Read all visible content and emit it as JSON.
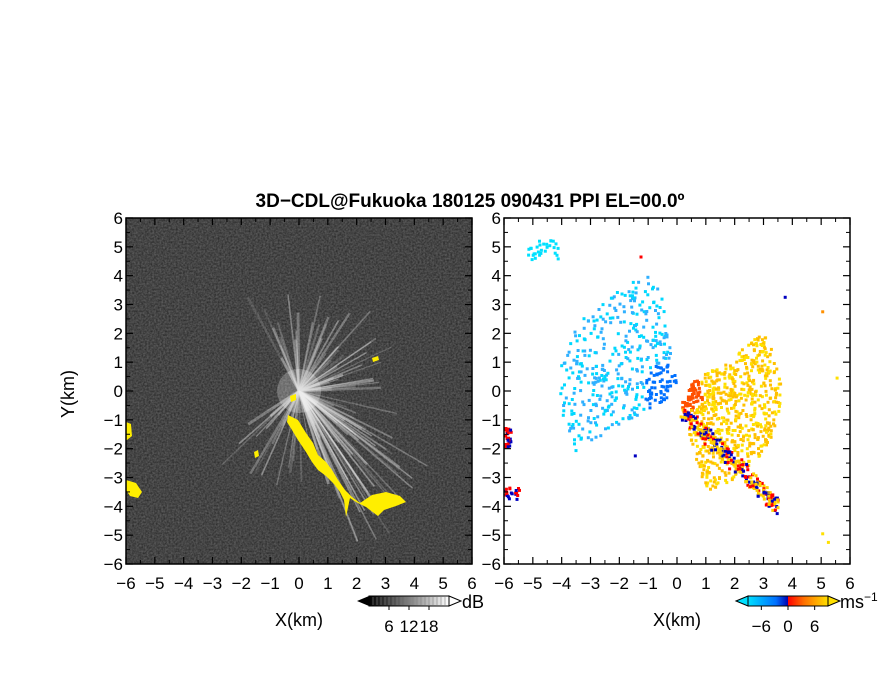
{
  "figure": {
    "title": "3D−CDL@Fukuoka 180125 090431 PPI EL=00.0º"
  },
  "chart_data": [
    {
      "type": "heatmap",
      "panel": "left",
      "xlabel": "X(km)",
      "ylabel": "Y(km)",
      "xlim": [
        -6,
        6
      ],
      "ylim": [
        -6,
        6
      ],
      "xticks": [
        "−6",
        "−5",
        "−4",
        "−3",
        "−2",
        "−1",
        "0",
        "1",
        "2",
        "3",
        "4",
        "5",
        "6"
      ],
      "yticks": [
        "−6",
        "−5",
        "−4",
        "−3",
        "−2",
        "−1",
        "0",
        "1",
        "2",
        "3",
        "4",
        "5",
        "6"
      ],
      "background_color": "#2a2a2a",
      "highlight_color": "#ffee00",
      "colorbar": {
        "unit": "dB",
        "ticks": [
          "6",
          "12",
          "18"
        ],
        "tick_values": [
          6,
          12,
          18
        ],
        "range": [
          0,
          24
        ],
        "colors": [
          "#000000",
          "#ffffff"
        ]
      }
    },
    {
      "type": "heatmap",
      "panel": "right",
      "xlabel": "X(km)",
      "ylabel": "",
      "xlim": [
        -6,
        6
      ],
      "ylim": [
        -6,
        6
      ],
      "xticks": [
        "−6",
        "−5",
        "−4",
        "−3",
        "−2",
        "−1",
        "0",
        "1",
        "2",
        "3",
        "4",
        "5",
        "6"
      ],
      "yticks": [
        "−6",
        "−5",
        "−4",
        "−3",
        "−2",
        "−1",
        "0",
        "1",
        "2",
        "3",
        "4",
        "5",
        "6"
      ],
      "colorbar": {
        "unit": "ms",
        "unit_exp": "−1",
        "ticks": [
          "−6",
          "0",
          "6"
        ],
        "tick_values": [
          -6,
          0,
          6
        ],
        "range": [
          -9,
          9
        ],
        "colors": [
          "#00e0ff",
          "#0070ff",
          "#0000b0",
          "#ff0000",
          "#ff7000",
          "#ffe000"
        ]
      }
    }
  ]
}
